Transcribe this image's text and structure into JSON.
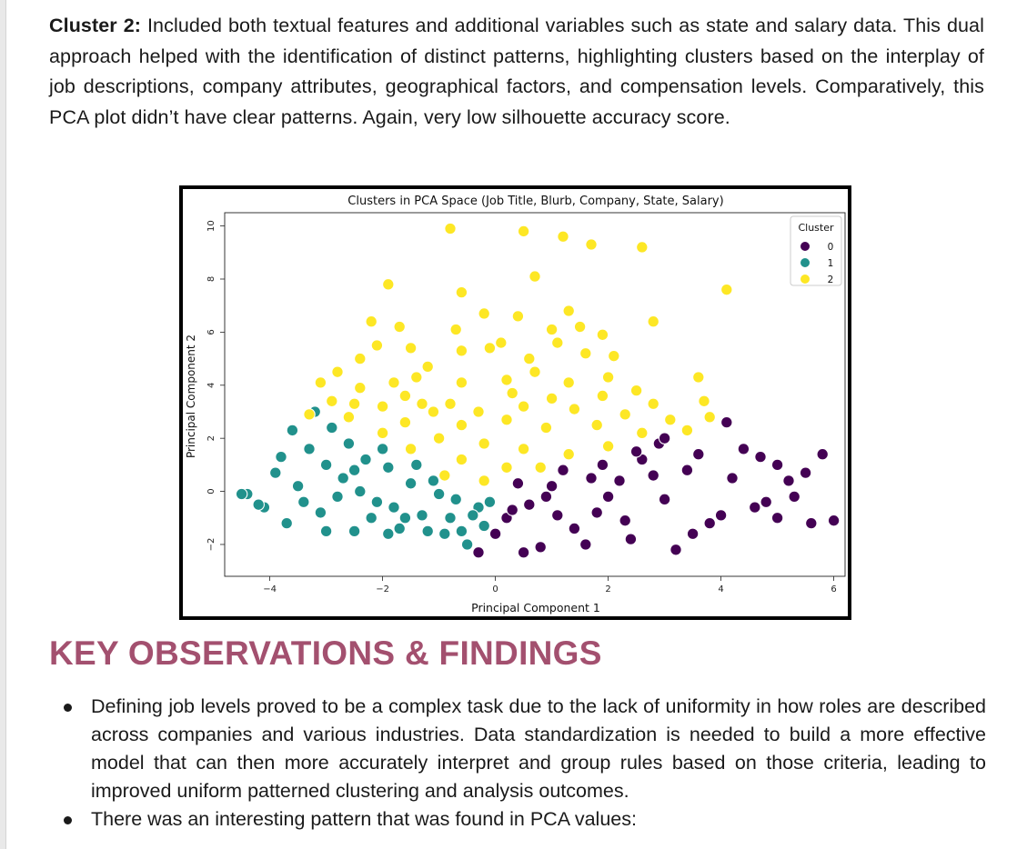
{
  "intro": {
    "lead": "Cluster 2:",
    "text": " Included both textual features and additional variables such as state and salary data. This dual approach helped with the identification of distinct patterns, highlighting clusters based on the interplay of job descriptions, company attributes, geographical factors, and compensation levels. Comparatively, this PCA plot didn’t have clear patterns. Again, very low silhouette accuracy score."
  },
  "chart_data": {
    "type": "scatter",
    "title": "Clusters in PCA Space (Job Title, Blurb, Company, State, Salary)",
    "xlabel": "Principal Component 1",
    "ylabel": "Principal Component 2",
    "xlim": [
      -4.8,
      6.2
    ],
    "ylim": [
      -3.2,
      10.5
    ],
    "xticks": [
      "−4",
      "−2",
      "0",
      "2",
      "4",
      "6"
    ],
    "yticks": [
      "−2",
      "0",
      "2",
      "4",
      "6",
      "8",
      "10"
    ],
    "grid": false,
    "legend": {
      "title": "Cluster",
      "placement": "top-right"
    },
    "series": [
      {
        "name": "0",
        "color": "#440154",
        "points": [
          [
            0.2,
            -1.0
          ],
          [
            0.6,
            -0.5
          ],
          [
            1.0,
            0.2
          ],
          [
            1.4,
            -1.4
          ],
          [
            1.8,
            -0.8
          ],
          [
            2.2,
            0.4
          ],
          [
            2.6,
            1.2
          ],
          [
            3.0,
            -0.3
          ],
          [
            3.4,
            0.8
          ],
          [
            3.8,
            -1.2
          ],
          [
            4.2,
            0.5
          ],
          [
            4.6,
            -0.6
          ],
          [
            5.0,
            1.0
          ],
          [
            5.3,
            -0.2
          ],
          [
            0.4,
            0.3
          ],
          [
            0.8,
            -2.1
          ],
          [
            1.2,
            0.8
          ],
          [
            1.6,
            -2.0
          ],
          [
            2.0,
            -0.2
          ],
          [
            2.4,
            -1.8
          ],
          [
            2.8,
            0.6
          ],
          [
            3.2,
            -2.2
          ],
          [
            3.6,
            1.4
          ],
          [
            4.0,
            -0.9
          ],
          [
            4.4,
            1.6
          ],
          [
            4.8,
            -0.4
          ],
          [
            5.2,
            0.4
          ],
          [
            0.0,
            -1.6
          ],
          [
            0.5,
            -2.3
          ],
          [
            1.1,
            -0.9
          ],
          [
            1.7,
            0.5
          ],
          [
            2.3,
            -1.1
          ],
          [
            2.9,
            1.8
          ],
          [
            3.5,
            -1.6
          ],
          [
            4.1,
            2.6
          ],
          [
            4.7,
            1.3
          ],
          [
            5.5,
            0.7
          ],
          [
            5.8,
            1.4
          ],
          [
            6.0,
            -1.1
          ],
          [
            5.6,
            -1.2
          ],
          [
            5.0,
            -1.0
          ],
          [
            3.0,
            2.0
          ],
          [
            2.5,
            1.5
          ],
          [
            1.9,
            1.0
          ],
          [
            0.9,
            -0.2
          ],
          [
            0.3,
            -0.7
          ],
          [
            -0.3,
            -2.3
          ]
        ]
      },
      {
        "name": "1",
        "color": "#21918c",
        "points": [
          [
            -4.4,
            -0.1
          ],
          [
            -4.1,
            -0.6
          ],
          [
            -3.9,
            0.7
          ],
          [
            -3.7,
            -1.2
          ],
          [
            -3.5,
            0.2
          ],
          [
            -3.3,
            1.6
          ],
          [
            -3.1,
            -0.8
          ],
          [
            -2.9,
            2.4
          ],
          [
            -2.7,
            0.5
          ],
          [
            -2.5,
            -1.5
          ],
          [
            -2.3,
            1.2
          ],
          [
            -2.1,
            -0.4
          ],
          [
            -1.9,
            0.9
          ],
          [
            -1.7,
            -1.4
          ],
          [
            -1.5,
            0.3
          ],
          [
            -1.3,
            -0.9
          ],
          [
            -1.1,
            0.4
          ],
          [
            -0.9,
            -1.6
          ],
          [
            -0.7,
            -0.3
          ],
          [
            -0.5,
            -2.0
          ],
          [
            -0.3,
            -0.6
          ],
          [
            -0.2,
            -1.3
          ],
          [
            -3.8,
            1.3
          ],
          [
            -3.6,
            2.3
          ],
          [
            -3.2,
            3.0
          ],
          [
            -3.4,
            -0.4
          ],
          [
            -3.0,
            1.0
          ],
          [
            -2.8,
            -0.2
          ],
          [
            -2.6,
            1.8
          ],
          [
            -2.4,
            0.0
          ],
          [
            -2.2,
            -1.0
          ],
          [
            -2.0,
            1.6
          ],
          [
            -1.8,
            -0.6
          ],
          [
            -1.6,
            -1.0
          ],
          [
            -1.4,
            1.0
          ],
          [
            -1.2,
            -1.5
          ],
          [
            -1.0,
            -0.1
          ],
          [
            -0.8,
            -1.0
          ],
          [
            -0.6,
            -1.5
          ],
          [
            -0.4,
            -0.9
          ],
          [
            -4.2,
            -0.5
          ],
          [
            -4.5,
            -0.1
          ],
          [
            -3.0,
            -1.5
          ],
          [
            -2.5,
            0.8
          ],
          [
            -1.9,
            -1.6
          ],
          [
            -0.1,
            -0.4
          ]
        ]
      },
      {
        "name": "2",
        "color": "#fde725",
        "points": [
          [
            -0.8,
            9.9
          ],
          [
            0.5,
            9.8
          ],
          [
            1.2,
            9.6
          ],
          [
            1.7,
            9.3
          ],
          [
            2.6,
            9.2
          ],
          [
            4.1,
            7.6
          ],
          [
            0.7,
            8.1
          ],
          [
            -1.9,
            7.8
          ],
          [
            -0.6,
            7.5
          ],
          [
            1.3,
            6.8
          ],
          [
            2.8,
            6.4
          ],
          [
            -2.2,
            6.4
          ],
          [
            -1.7,
            6.2
          ],
          [
            -0.2,
            6.7
          ],
          [
            0.4,
            6.6
          ],
          [
            1.5,
            6.2
          ],
          [
            -0.7,
            6.1
          ],
          [
            0.1,
            5.6
          ],
          [
            1.9,
            5.9
          ],
          [
            -2.1,
            5.5
          ],
          [
            -1.5,
            5.4
          ],
          [
            1.1,
            5.6
          ],
          [
            -2.4,
            5.0
          ],
          [
            -1.2,
            4.7
          ],
          [
            -0.6,
            5.3
          ],
          [
            0.6,
            5.0
          ],
          [
            1.6,
            5.2
          ],
          [
            2.1,
            5.1
          ],
          [
            -2.8,
            4.5
          ],
          [
            -1.4,
            4.3
          ],
          [
            -0.6,
            4.1
          ],
          [
            0.2,
            4.2
          ],
          [
            0.7,
            4.5
          ],
          [
            1.3,
            4.1
          ],
          [
            2.0,
            4.3
          ],
          [
            3.6,
            4.3
          ],
          [
            -3.1,
            4.1
          ],
          [
            -2.4,
            3.9
          ],
          [
            -1.6,
            3.6
          ],
          [
            -0.8,
            3.3
          ],
          [
            0.3,
            3.7
          ],
          [
            1.0,
            3.5
          ],
          [
            1.9,
            3.6
          ],
          [
            2.8,
            3.3
          ],
          [
            3.7,
            3.4
          ],
          [
            -2.9,
            3.4
          ],
          [
            -2.0,
            3.2
          ],
          [
            -1.1,
            3.0
          ],
          [
            -0.3,
            3.0
          ],
          [
            0.5,
            3.2
          ],
          [
            1.4,
            3.1
          ],
          [
            2.3,
            2.9
          ],
          [
            3.1,
            2.7
          ],
          [
            -2.6,
            2.8
          ],
          [
            -1.6,
            2.6
          ],
          [
            -0.6,
            2.5
          ],
          [
            0.2,
            2.7
          ],
          [
            0.9,
            2.4
          ],
          [
            1.8,
            2.5
          ],
          [
            2.6,
            2.2
          ],
          [
            3.4,
            2.3
          ],
          [
            3.8,
            2.8
          ],
          [
            -2.0,
            2.2
          ],
          [
            -1.0,
            2.0
          ],
          [
            -0.2,
            1.8
          ],
          [
            0.5,
            1.6
          ],
          [
            1.3,
            1.4
          ],
          [
            2.0,
            1.7
          ],
          [
            -1.5,
            1.6
          ],
          [
            -0.6,
            1.2
          ],
          [
            0.2,
            0.9
          ],
          [
            0.8,
            0.9
          ],
          [
            -0.9,
            0.6
          ],
          [
            -0.2,
            0.4
          ],
          [
            -3.3,
            2.9
          ],
          [
            -2.5,
            3.3
          ],
          [
            2.5,
            3.8
          ],
          [
            -1.8,
            4.1
          ],
          [
            -0.1,
            5.4
          ],
          [
            1.0,
            6.1
          ],
          [
            -1.3,
            3.3
          ]
        ]
      }
    ]
  },
  "findings": {
    "heading": "KEY OBSERVATIONS & FINDINGS",
    "items": [
      "Defining job levels proved to be a complex task due to the lack of uniformity in how roles are described across companies and various industries. Data standardization is needed to build a more effective model that can then more accurately interpret and group rules based on those criteria, leading to improved uniform patterned clustering and analysis outcomes.",
      "There was an interesting pattern that was found in PCA values:"
    ]
  }
}
